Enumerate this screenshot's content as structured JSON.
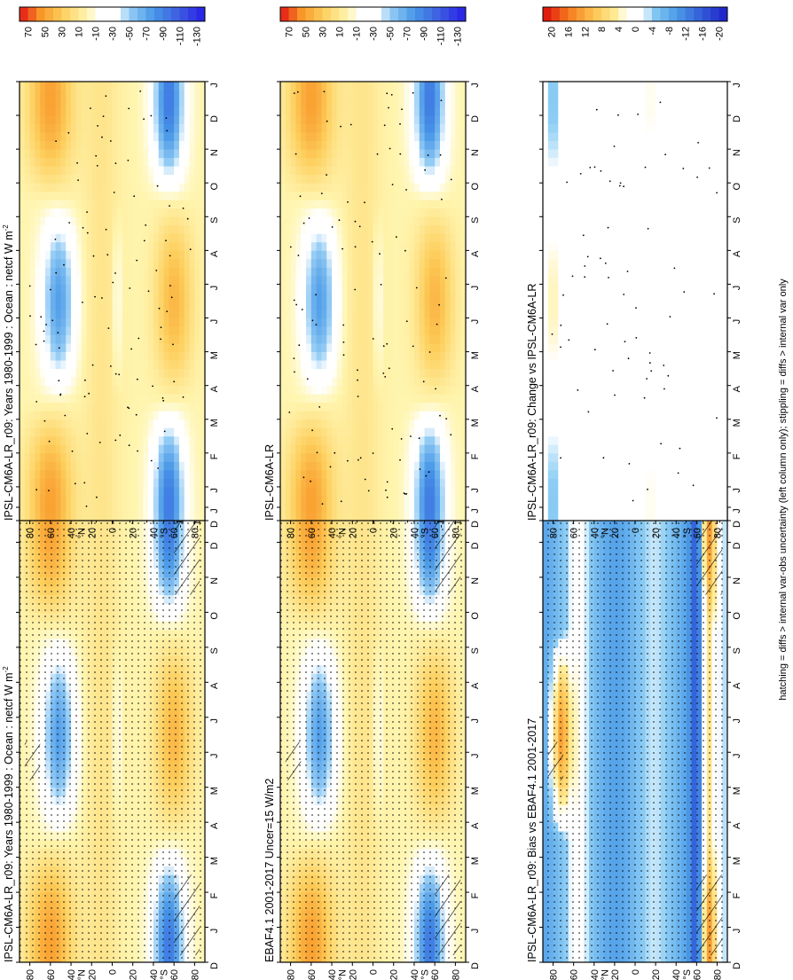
{
  "footer_note": "hatching = diffs > internal var-obs uncertainty (left column only); stippling = diffs > internal var only",
  "colors": {
    "stipple": "#000000",
    "frame": "#000000"
  },
  "chart_data": [
    {
      "type": "heatmap",
      "title": "IPSL-CM6A-LR_r09: Years 1980-1999 : Ocean : netcf W m",
      "title_sup": "-2",
      "time_ticks": [
        "D",
        "J",
        "F",
        "M",
        "A",
        "M",
        "J",
        "J",
        "A",
        "S",
        "O",
        "N",
        "D",
        "J"
      ],
      "lat_ticks": [
        "80",
        "60",
        "40",
        "°N",
        "20",
        "0",
        "20",
        "40",
        "°S",
        "60",
        "80"
      ],
      "legend_ticks": [
        "70",
        "50",
        "30",
        "10",
        "-10",
        "-30",
        "-50",
        "-70",
        "-90",
        "-110",
        "-130"
      ],
      "legend_range": [
        -140,
        80
      ],
      "field": "sw",
      "hatching": true,
      "stippling": "heavy"
    },
    {
      "type": "heatmap",
      "title": "IPSL-CM6A-LR_r09: Years 1980-1999 : Ocean : netcf W m",
      "title_sup": "-2",
      "time_ticks": [
        "D",
        "J",
        "F",
        "M",
        "A",
        "M",
        "J",
        "J",
        "A",
        "S",
        "O",
        "N",
        "D",
        "J"
      ],
      "lat_ticks": [
        "80",
        "60",
        "40",
        "°N",
        "20",
        "0",
        "20",
        "40",
        "°S",
        "60",
        "80"
      ],
      "legend_ticks": [
        "70",
        "50",
        "30",
        "10",
        "-10",
        "-30",
        "-50",
        "-70",
        "-90",
        "-110",
        "-130"
      ],
      "legend_range": [
        -140,
        80
      ],
      "field": "sw",
      "hatching": false,
      "stippling": "light"
    },
    {
      "type": "heatmap",
      "title": "EBAF4.1 2001-2017 Uncer=15 W/m2",
      "title_sup": "",
      "time_ticks": [
        "D",
        "J",
        "F",
        "M",
        "A",
        "M",
        "J",
        "J",
        "A",
        "S",
        "O",
        "N",
        "D",
        "J"
      ],
      "lat_ticks": [
        "80",
        "60",
        "40",
        "°N",
        "20",
        "0",
        "20",
        "40",
        "°S",
        "60",
        "80"
      ],
      "legend_ticks": [
        "70",
        "50",
        "30",
        "10",
        "-10",
        "-30",
        "-50",
        "-70",
        "-90",
        "-110",
        "-130"
      ],
      "legend_range": [
        -140,
        80
      ],
      "field": "sw",
      "hatching": true,
      "stippling": "heavy"
    },
    {
      "type": "heatmap",
      "title": "IPSL-CM6A-LR",
      "title_sup": "",
      "time_ticks": [
        "D",
        "J",
        "F",
        "M",
        "A",
        "M",
        "J",
        "J",
        "A",
        "S",
        "O",
        "N",
        "D",
        "J"
      ],
      "lat_ticks": [
        "80",
        "60",
        "40",
        "°N",
        "20",
        "0",
        "20",
        "40",
        "°S",
        "60",
        "80"
      ],
      "legend_ticks": [
        "70",
        "50",
        "30",
        "10",
        "-10",
        "-30",
        "-50",
        "-70",
        "-90",
        "-110",
        "-130"
      ],
      "legend_range": [
        -140,
        80
      ],
      "field": "sw",
      "hatching": false,
      "stippling": "light"
    },
    {
      "type": "heatmap",
      "title": "IPSL-CM6A-LR_r09: Bias vs EBAF4.1 2001-2017",
      "title_sup": "",
      "time_ticks": [
        "D",
        "J",
        "F",
        "M",
        "A",
        "M",
        "J",
        "J",
        "A",
        "S",
        "O",
        "N",
        "D",
        "J"
      ],
      "lat_ticks": [
        "80",
        "60",
        "40",
        "°N",
        "20",
        "0",
        "20",
        "40",
        "°S",
        "60",
        "80"
      ],
      "legend_ticks": [
        "20",
        "16",
        "12",
        "8",
        "4",
        "0",
        "-4",
        "-8",
        "-12",
        "-16",
        "-20"
      ],
      "legend_range": [
        -22,
        22
      ],
      "field": "bias",
      "hatching": true,
      "stippling": "heavy"
    },
    {
      "type": "heatmap",
      "title": "IPSL-CM6A-LR_r09: Change vs IPSL-CM6A-LR",
      "title_sup": "",
      "time_ticks": [
        "D",
        "J",
        "F",
        "M",
        "A",
        "M",
        "J",
        "J",
        "A",
        "S",
        "O",
        "N",
        "D",
        "J"
      ],
      "lat_ticks": [
        "80",
        "60",
        "40",
        "°N",
        "20",
        "0",
        "20",
        "40",
        "°S",
        "60",
        "80"
      ],
      "legend_ticks": [
        "20",
        "16",
        "12",
        "8",
        "4",
        "0",
        "-4",
        "-8",
        "-12",
        "-16",
        "-20"
      ],
      "legend_range": [
        -22,
        22
      ],
      "field": "change",
      "hatching": false,
      "stippling": "sparse"
    }
  ]
}
